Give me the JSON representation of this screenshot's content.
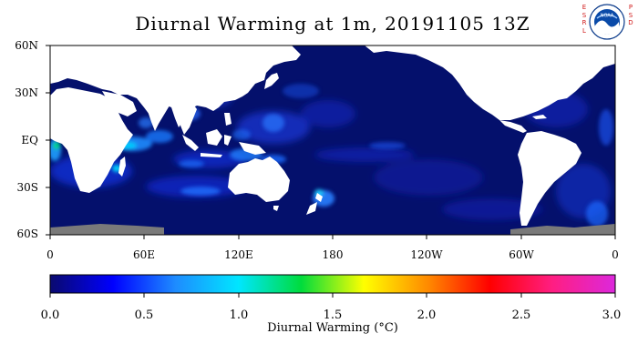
{
  "map": {
    "title": "Diurnal Warming at 1m, 20191105 13Z",
    "lat_labels": [
      "60N",
      "30N",
      "EQ",
      "30S",
      "60S"
    ],
    "lon_labels": [
      "0",
      "60E",
      "120E",
      "180",
      "120W",
      "60W",
      "0"
    ],
    "lat_range": [
      -60,
      60
    ],
    "lon_range": [
      0,
      360
    ],
    "colors": {
      "ocean_base": "#04106c",
      "land": "#ffffff",
      "ice": "#7a7a7a",
      "frame": "#000000"
    }
  },
  "colorbar": {
    "title": "Diurnal Warming (°C)",
    "tick_labels": [
      "0.0",
      "0.5",
      "1.0",
      "1.5",
      "2.0",
      "2.5",
      "3.0"
    ],
    "range": [
      0,
      3
    ],
    "colors": [
      "#0a0a6e",
      "#0000ff",
      "#1e8cff",
      "#00e6ff",
      "#00dc3c",
      "#ffff00",
      "#ff8c00",
      "#ff0000",
      "#ff1e82",
      "#dc28dc"
    ]
  },
  "branding": {
    "side_letters_left": [
      "E",
      "S",
      "R",
      "L"
    ],
    "side_letters_right": [
      "P",
      "S",
      "D"
    ],
    "logo_text": "NOAA",
    "logo_icon": "noaa-logo-icon"
  }
}
